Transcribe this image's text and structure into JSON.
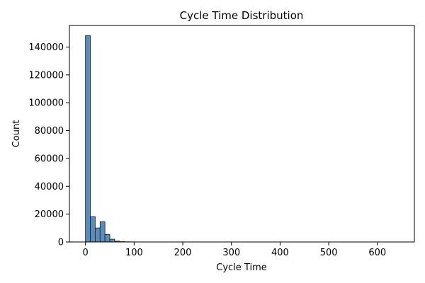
{
  "chart_data": {
    "type": "bar",
    "title": "Cycle Time Distribution",
    "xlabel": "Cycle Time",
    "ylabel": "Count",
    "xlim": [
      -33,
      676
    ],
    "ylim": [
      0,
      155500
    ],
    "xticks": [
      0,
      100,
      200,
      300,
      400,
      500,
      600
    ],
    "yticks": [
      0,
      20000,
      40000,
      60000,
      80000,
      100000,
      120000,
      140000
    ],
    "bin_width": 10,
    "bin_starts": [
      0,
      10,
      20,
      30,
      40,
      50,
      60,
      70,
      80,
      90
    ],
    "values": [
      148200,
      18200,
      10100,
      14500,
      5400,
      2000,
      600,
      250,
      150,
      80
    ],
    "grid": false,
    "bar_color": "#5b8db8",
    "edge_color": "#1a1a1a"
  }
}
